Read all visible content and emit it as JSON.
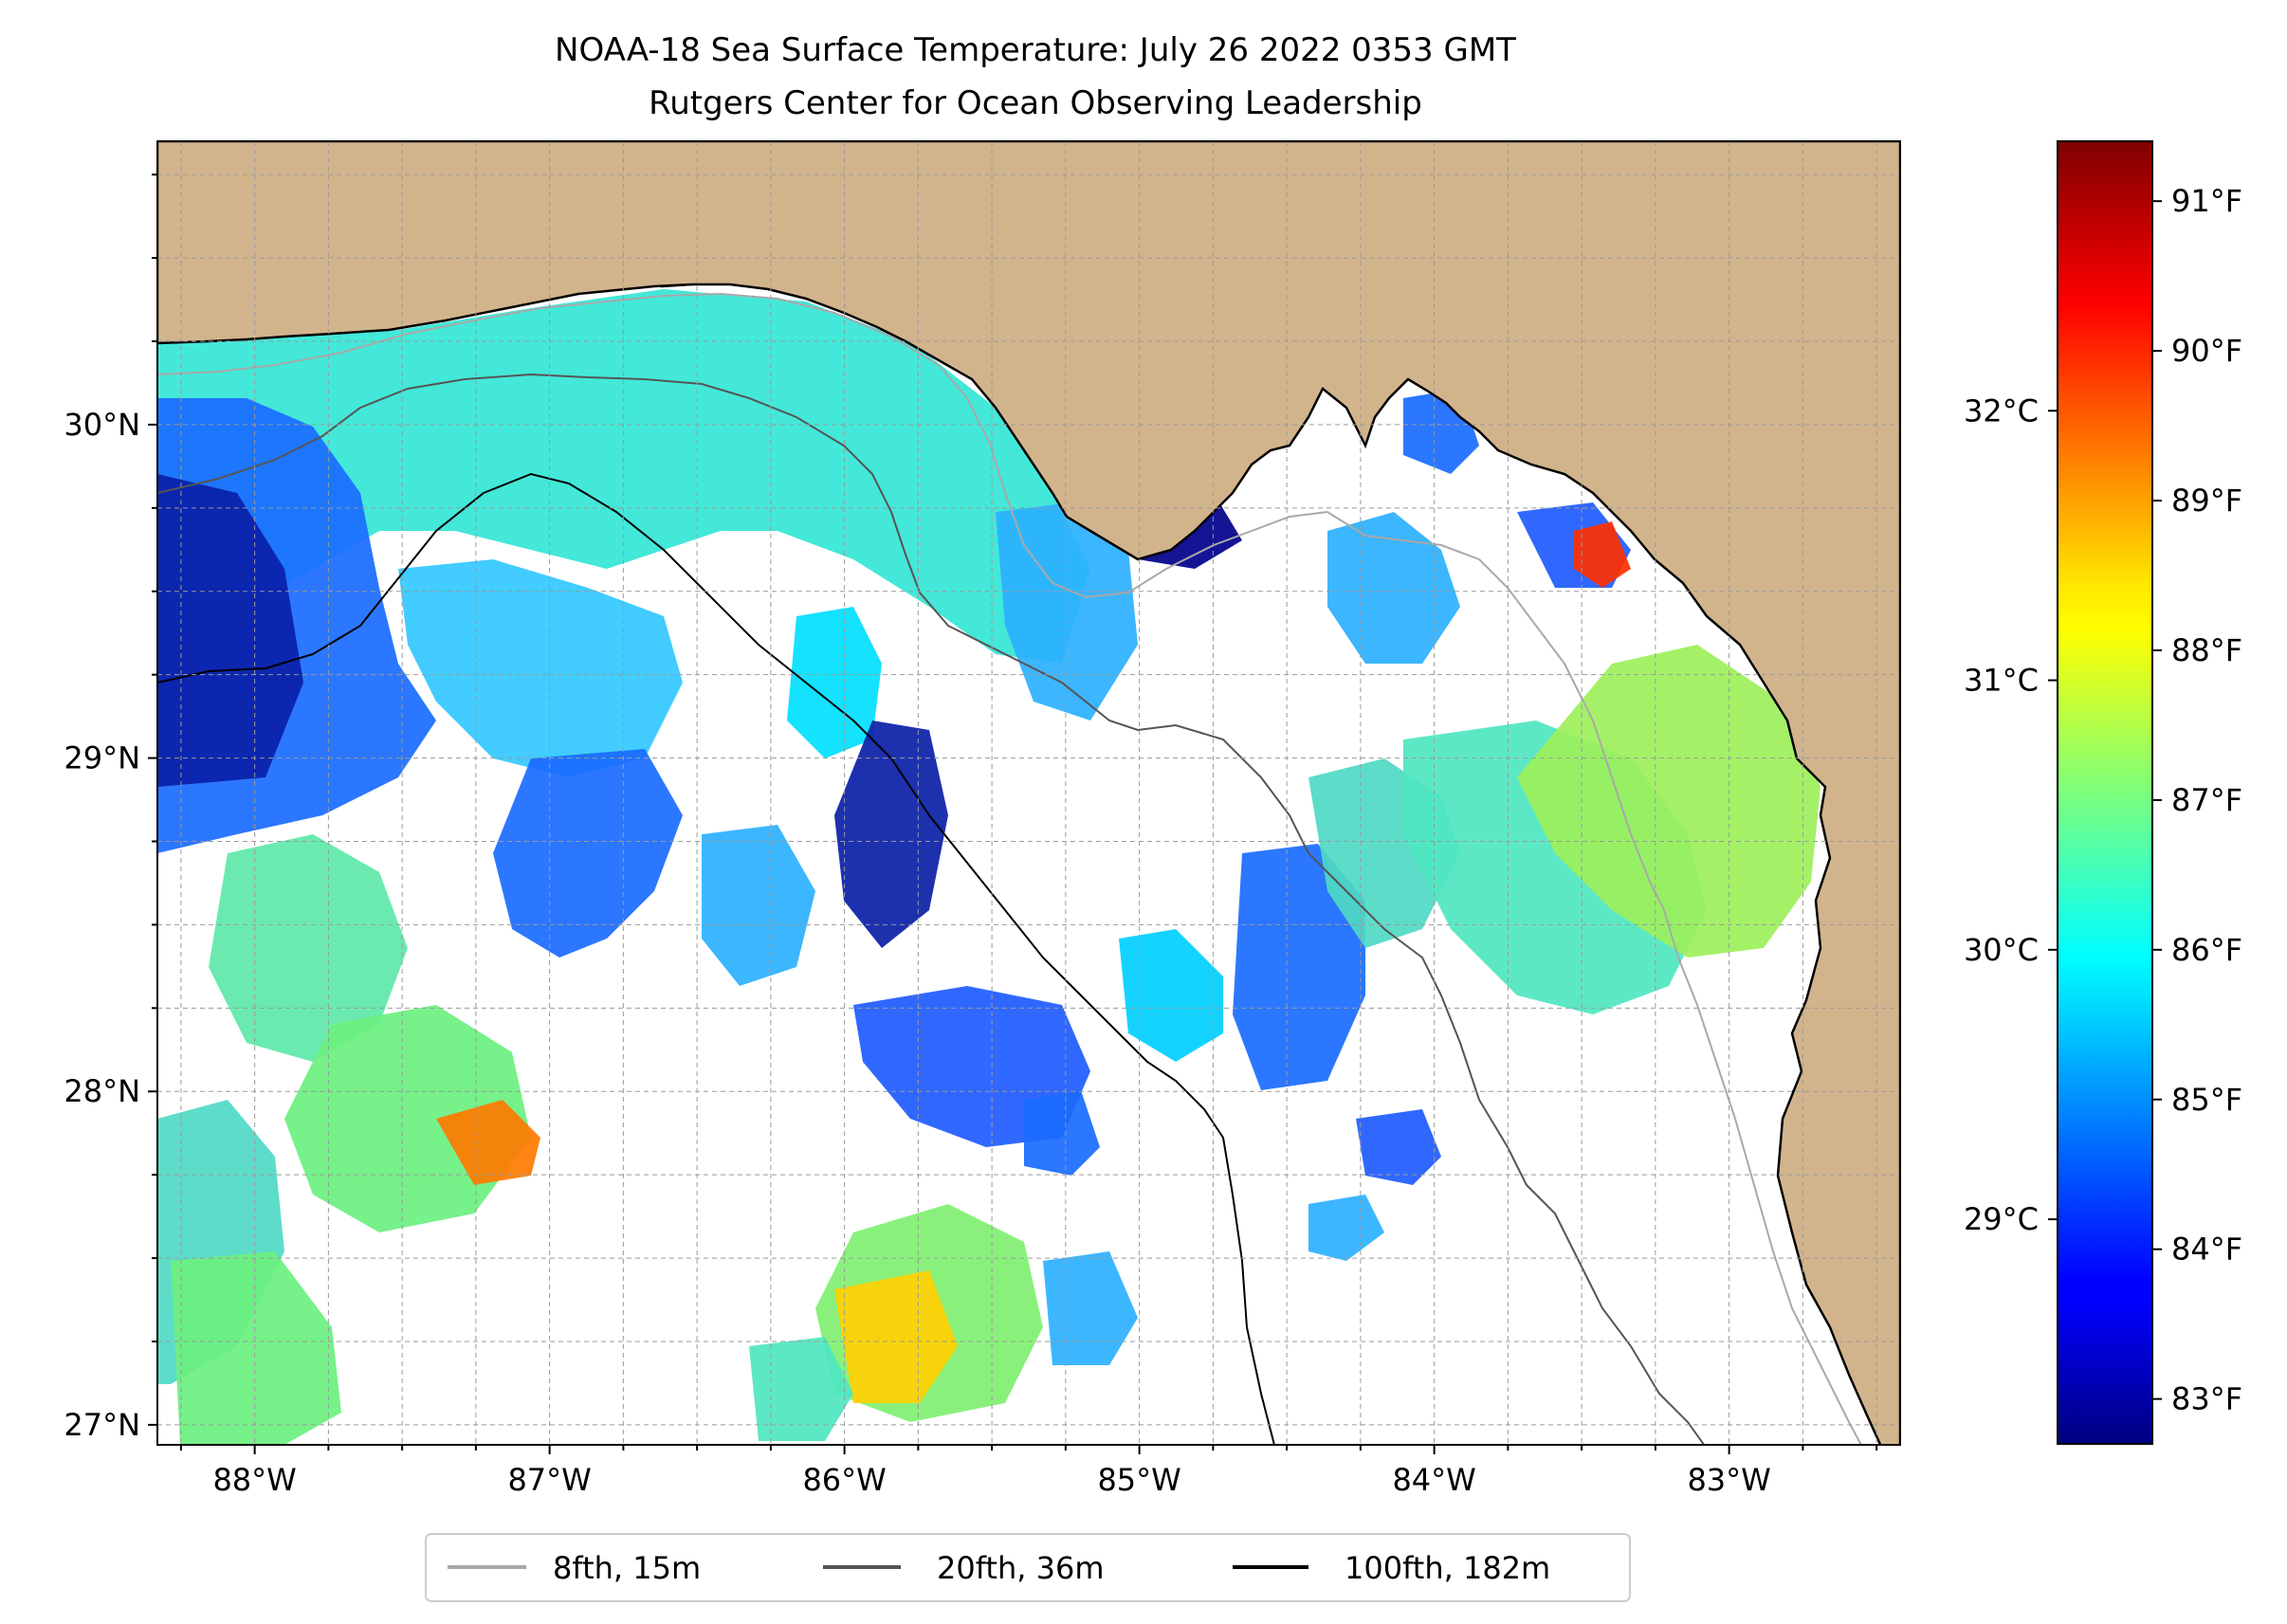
{
  "title": "NOAA-18 Sea Surface Temperature: July 26 2022 0353 GMT",
  "subtitle": "Rutgers Center for Ocean Observing Leadership",
  "map": {
    "lon_range": [
      -88.33,
      -82.42
    ],
    "lat_range": [
      26.94,
      30.85
    ],
    "lon_ticks": [
      {
        "value": -88,
        "label": "88°W"
      },
      {
        "value": -87,
        "label": "87°W"
      },
      {
        "value": -86,
        "label": "86°W"
      },
      {
        "value": -85,
        "label": "85°W"
      },
      {
        "value": -84,
        "label": "84°W"
      },
      {
        "value": -83,
        "label": "83°W"
      }
    ],
    "lat_ticks": [
      {
        "value": 27,
        "label": "27°N"
      },
      {
        "value": 28,
        "label": "28°N"
      },
      {
        "value": 29,
        "label": "29°N"
      },
      {
        "value": 30,
        "label": "30°N"
      }
    ],
    "land_color": "#d2b48c",
    "water_color": "#a5bfdd",
    "gridlines": true
  },
  "colorbar": {
    "colormap": "jet",
    "f_range": [
      82.7,
      91.4
    ],
    "f_ticks": [
      {
        "value": 83,
        "label": "83°F"
      },
      {
        "value": 84,
        "label": "84°F"
      },
      {
        "value": 85,
        "label": "85°F"
      },
      {
        "value": 86,
        "label": "86°F"
      },
      {
        "value": 87,
        "label": "87°F"
      },
      {
        "value": 88,
        "label": "88°F"
      },
      {
        "value": 89,
        "label": "89°F"
      },
      {
        "value": 90,
        "label": "90°F"
      },
      {
        "value": 91,
        "label": "91°F"
      }
    ],
    "c_ticks": [
      {
        "value": 29,
        "label": "29°C"
      },
      {
        "value": 30,
        "label": "30°C"
      },
      {
        "value": 31,
        "label": "31°C"
      },
      {
        "value": 32,
        "label": "32°C"
      }
    ]
  },
  "legend": {
    "placement": "bottom-center",
    "items": [
      {
        "label": "8fth, 15m",
        "color": "#a9a9a9"
      },
      {
        "label": "20fth, 36m",
        "color": "#555555"
      },
      {
        "label": "100fth, 182m",
        "color": "#000000"
      }
    ]
  }
}
